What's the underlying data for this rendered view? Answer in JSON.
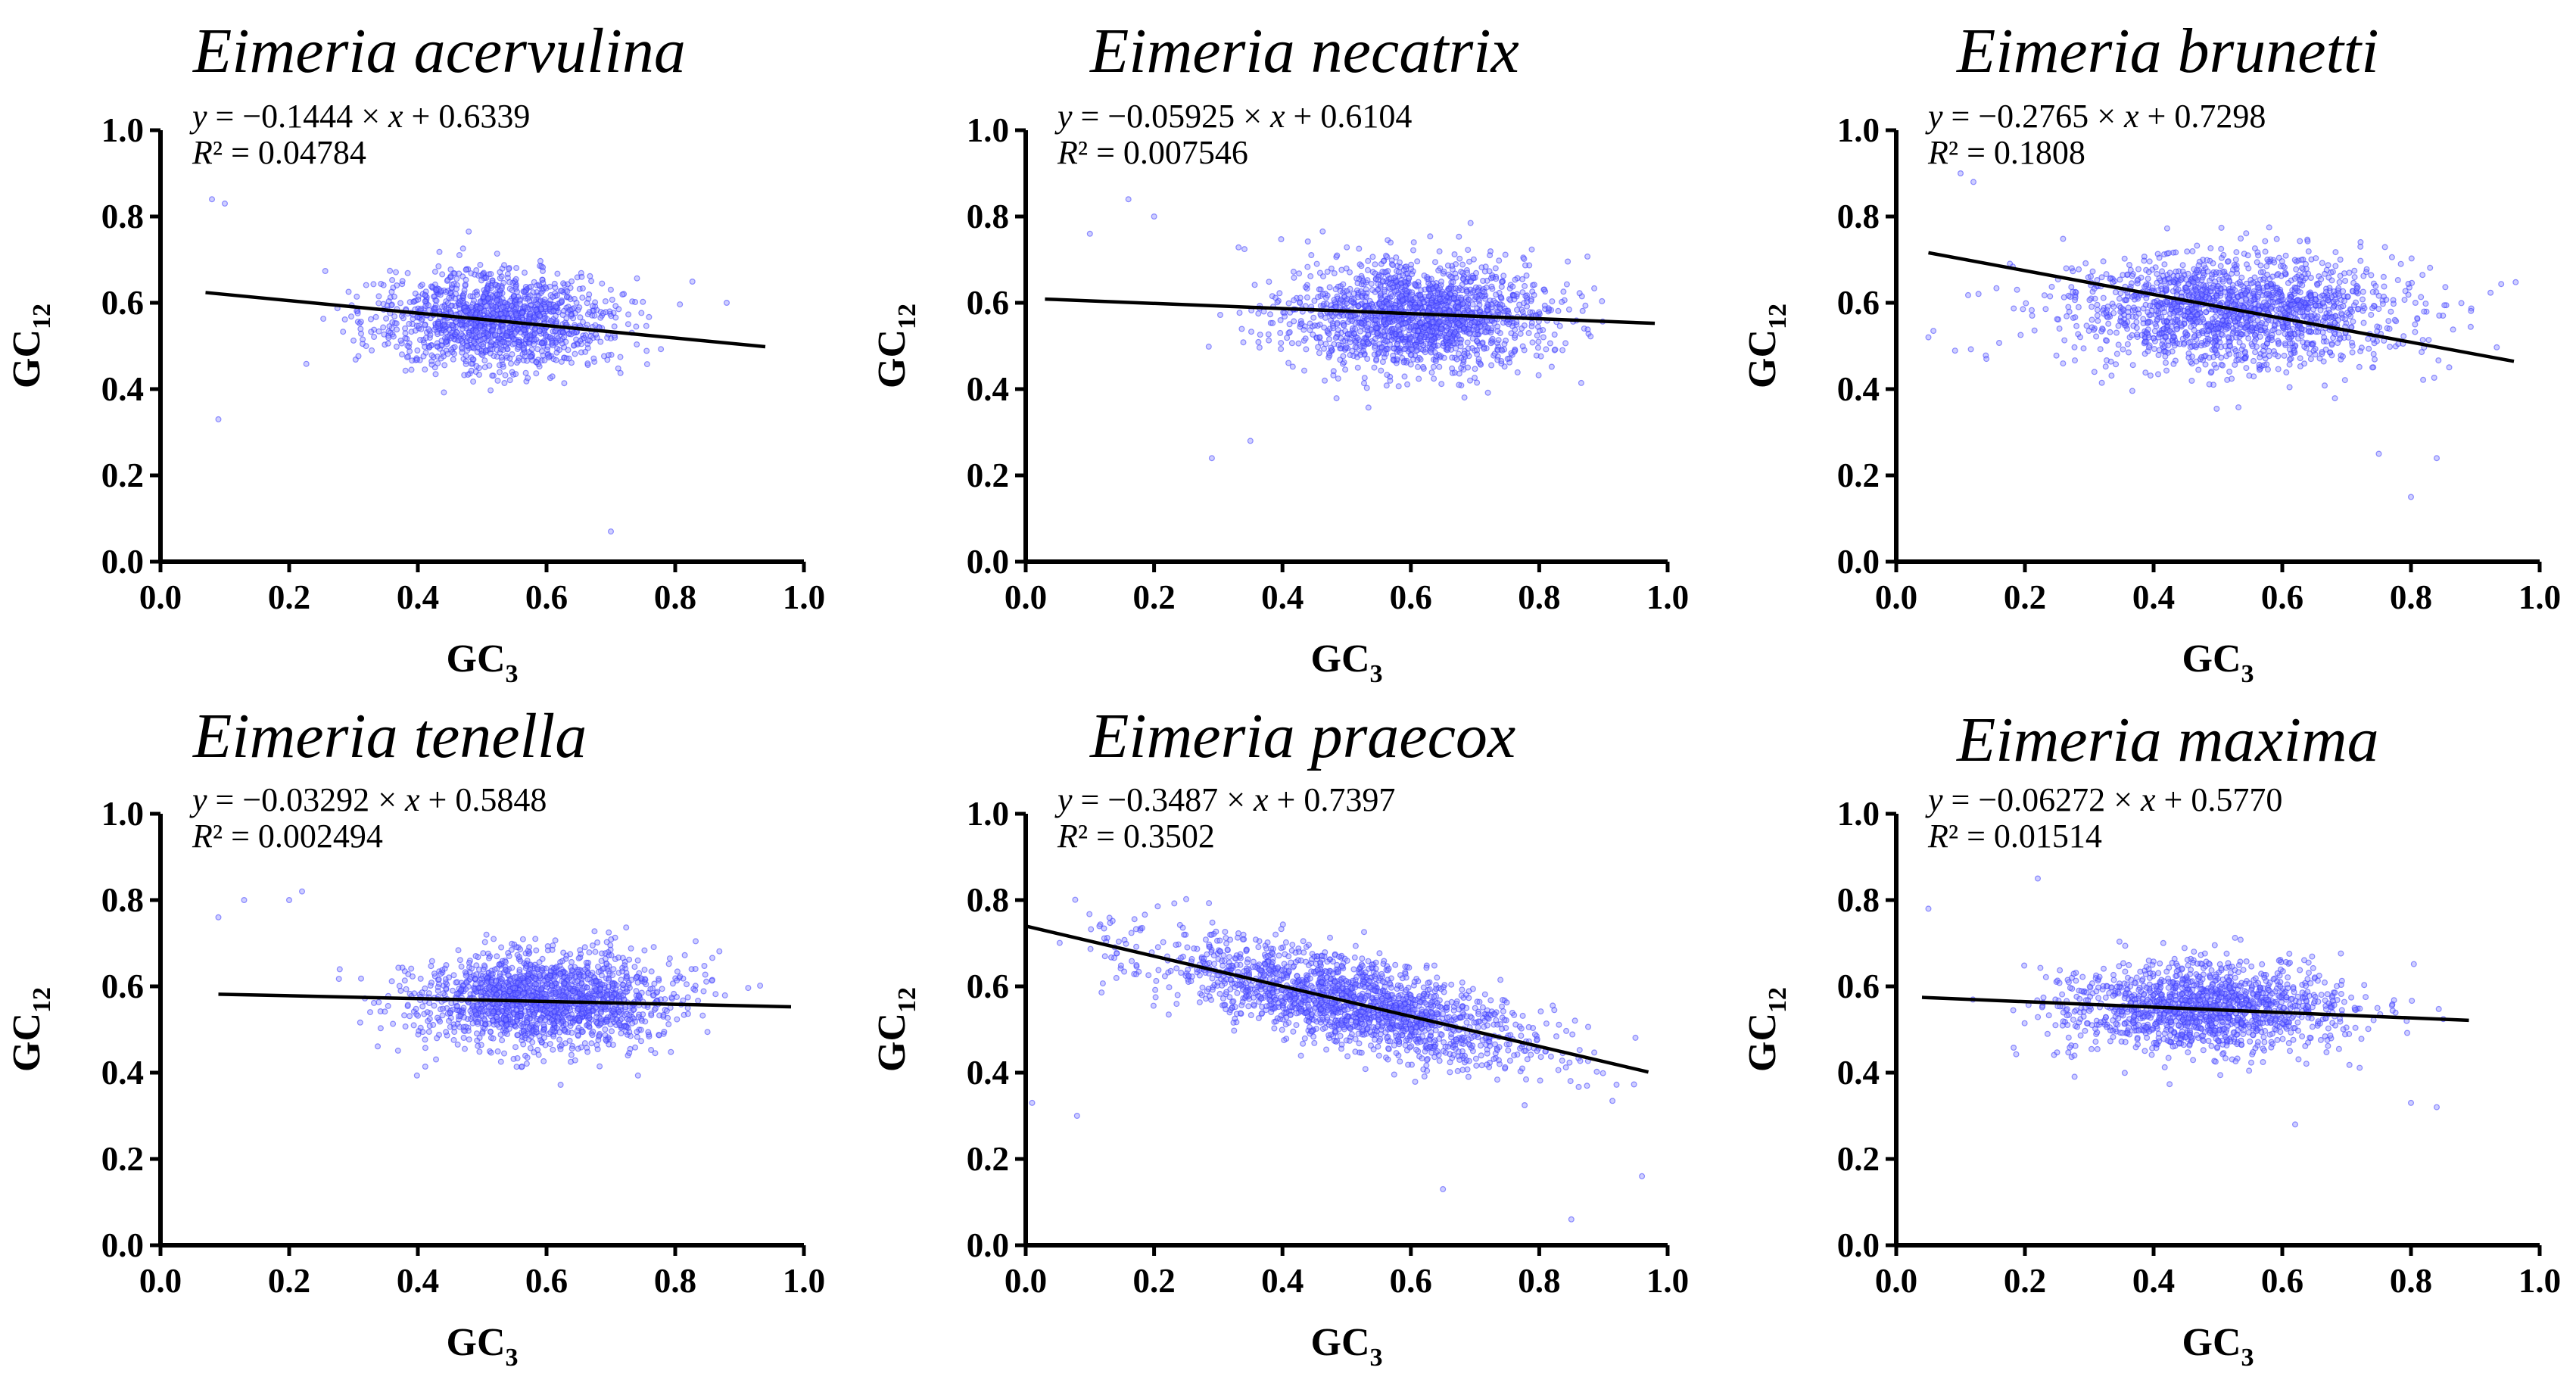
{
  "chart_data": [
    {
      "type": "scatter",
      "title": "Eimeria acervulina",
      "equation": "y = −0.1444 × x + 0.6339",
      "r2_label": "R² = 0.04784",
      "slope": -0.1444,
      "intercept": 0.6339,
      "r2": 0.04784,
      "fit_x_range": [
        0.07,
        0.94
      ],
      "xlabel": "GC3",
      "ylabel": "GC12",
      "xlim": [
        0,
        1
      ],
      "ylim": [
        0,
        1
      ],
      "xticks": [
        "0.0",
        "0.2",
        "0.4",
        "0.6",
        "0.8",
        "1.0"
      ],
      "yticks": [
        "0.0",
        "0.2",
        "0.4",
        "0.6",
        "0.8",
        "1.0"
      ],
      "cloud": {
        "x_mean": 0.52,
        "x_sd": 0.09,
        "y_mean": 0.56,
        "y_sd": 0.055,
        "n": 1400
      },
      "outliers": [
        [
          0.09,
          0.33
        ],
        [
          0.08,
          0.84
        ],
        [
          0.1,
          0.83
        ],
        [
          0.7,
          0.07
        ],
        [
          0.88,
          0.6
        ]
      ],
      "legend": "none"
    },
    {
      "type": "scatter",
      "title": "Eimeria necatrix",
      "equation": "y = −0.05925 × x + 0.6104",
      "r2_label": "R² = 0.007546",
      "slope": -0.05925,
      "intercept": 0.6104,
      "r2": 0.007546,
      "fit_x_range": [
        0.03,
        0.98
      ],
      "xlabel": "GC3",
      "ylabel": "GC12",
      "xlim": [
        0,
        1
      ],
      "ylim": [
        0,
        1
      ],
      "xticks": [
        "0.0",
        "0.2",
        "0.4",
        "0.6",
        "0.8",
        "1.0"
      ],
      "yticks": [
        "0.0",
        "0.2",
        "0.4",
        "0.6",
        "0.8",
        "1.0"
      ],
      "cloud": {
        "x_mean": 0.61,
        "x_sd": 0.1,
        "y_mean": 0.57,
        "y_sd": 0.06,
        "n": 1700
      },
      "outliers": [
        [
          0.16,
          0.84
        ],
        [
          0.29,
          0.24
        ],
        [
          0.35,
          0.28
        ],
        [
          0.1,
          0.76
        ],
        [
          0.2,
          0.8
        ]
      ],
      "legend": "none"
    },
    {
      "type": "scatter",
      "title": "Eimeria brunetti",
      "equation": "y = −0.2765 × x + 0.7298",
      "r2_label": "R² = 0.1808",
      "slope": -0.2765,
      "intercept": 0.7298,
      "r2": 0.1808,
      "fit_x_range": [
        0.05,
        0.96
      ],
      "xlabel": "GC3",
      "ylabel": "GC12",
      "xlim": [
        0,
        1
      ],
      "ylim": [
        0,
        1
      ],
      "xticks": [
        "0.0",
        "0.2",
        "0.4",
        "0.6",
        "0.8",
        "1.0"
      ],
      "yticks": [
        "0.0",
        "0.2",
        "0.4",
        "0.6",
        "0.8",
        "1.0"
      ],
      "cloud": {
        "x_mean": 0.53,
        "x_sd": 0.13,
        "y_mean": 0.58,
        "y_sd": 0.065,
        "n": 1700
      },
      "outliers": [
        [
          0.1,
          0.9
        ],
        [
          0.12,
          0.88
        ],
        [
          0.8,
          0.15
        ],
        [
          0.75,
          0.25
        ],
        [
          0.84,
          0.24
        ],
        [
          0.05,
          0.52
        ]
      ],
      "legend": "none"
    },
    {
      "type": "scatter",
      "title": "Eimeria tenella",
      "equation": "y = −0.03292 × x + 0.5848",
      "r2_label": "R² = 0.002494",
      "slope": -0.03292,
      "intercept": 0.5848,
      "r2": 0.002494,
      "fit_x_range": [
        0.09,
        0.98
      ],
      "xlabel": "GC3",
      "ylabel": "GC12",
      "xlim": [
        0,
        1
      ],
      "ylim": [
        0,
        1
      ],
      "xticks": [
        "0.0",
        "0.2",
        "0.4",
        "0.6",
        "0.8",
        "1.0"
      ],
      "yticks": [
        "0.0",
        "0.2",
        "0.4",
        "0.6",
        "0.8",
        "1.0"
      ],
      "cloud": {
        "x_mean": 0.6,
        "x_sd": 0.1,
        "y_mean": 0.57,
        "y_sd": 0.055,
        "n": 1700
      },
      "outliers": [
        [
          0.2,
          0.8
        ],
        [
          0.22,
          0.82
        ],
        [
          0.13,
          0.8
        ],
        [
          0.09,
          0.76
        ]
      ],
      "legend": "none"
    },
    {
      "type": "scatter",
      "title": "Eimeria praecox",
      "equation": "y = −0.3487 × x + 0.7397",
      "r2_label": "R² = 0.3502",
      "slope": -0.3487,
      "intercept": 0.7397,
      "r2": 0.3502,
      "fit_x_range": [
        0.0,
        0.97
      ],
      "xlabel": "GC3",
      "ylabel": "GC12",
      "xlim": [
        0,
        1
      ],
      "ylim": [
        0,
        1
      ],
      "xticks": [
        "0.0",
        "0.2",
        "0.4",
        "0.6",
        "0.8",
        "1.0"
      ],
      "yticks": [
        "0.0",
        "0.2",
        "0.4",
        "0.6",
        "0.8",
        "1.0"
      ],
      "cloud": {
        "x_mean": 0.5,
        "x_sd": 0.15,
        "y_mean": 0.56,
        "y_sd": 0.05,
        "n": 1800,
        "follow_fit": true
      },
      "outliers": [
        [
          0.65,
          0.13
        ],
        [
          0.85,
          0.06
        ],
        [
          0.96,
          0.16
        ],
        [
          0.08,
          0.3
        ],
        [
          0.01,
          0.33
        ]
      ],
      "legend": "none"
    },
    {
      "type": "scatter",
      "title": "Eimeria maxima",
      "equation": "y = −0.06272 × x + 0.5770",
      "r2_label": "R² = 0.01514",
      "slope": -0.06272,
      "intercept": 0.577,
      "r2": 0.01514,
      "fit_x_range": [
        0.04,
        0.89
      ],
      "xlabel": "GC3",
      "ylabel": "GC12",
      "xlim": [
        0,
        1
      ],
      "ylim": [
        0,
        1
      ],
      "xticks": [
        "0.0",
        "0.2",
        "0.4",
        "0.6",
        "0.8",
        "1.0"
      ],
      "yticks": [
        "0.0",
        "0.2",
        "0.4",
        "0.6",
        "0.8",
        "1.0"
      ],
      "cloud": {
        "x_mean": 0.48,
        "x_sd": 0.11,
        "y_mean": 0.55,
        "y_sd": 0.05,
        "n": 1400
      },
      "outliers": [
        [
          0.05,
          0.78
        ],
        [
          0.22,
          0.85
        ],
        [
          0.8,
          0.33
        ],
        [
          0.84,
          0.32
        ],
        [
          0.62,
          0.28
        ]
      ],
      "legend": "none"
    }
  ]
}
